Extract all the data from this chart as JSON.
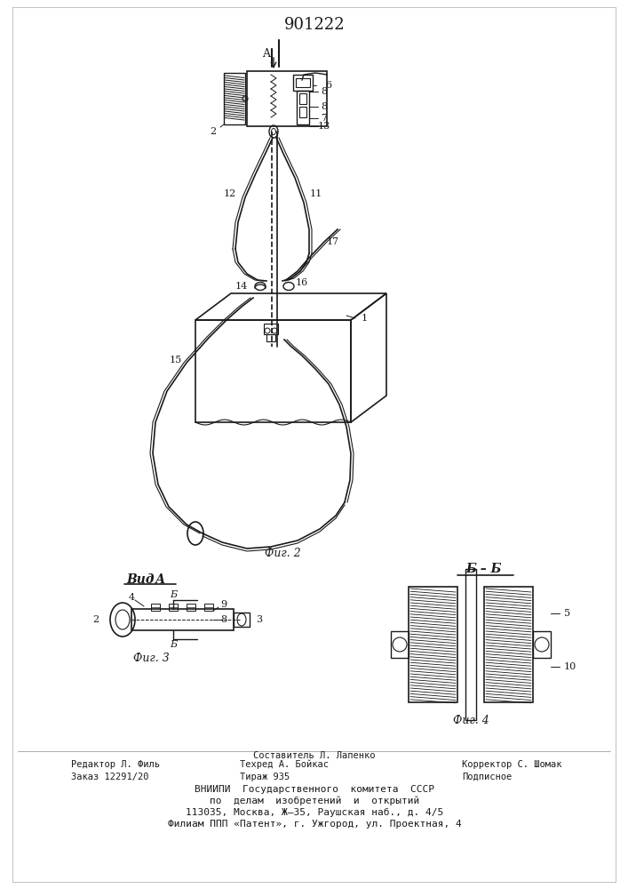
{
  "patent_number": "901222",
  "background_color": "#ffffff",
  "line_color": "#1a1a1a",
  "fig_width": 7.07,
  "fig_height": 10.0,
  "dpi": 100,
  "footer_col1_line1": "Редактор Л. Филь",
  "footer_col1_line2": "Заказ 12291/20",
  "footer_col2_line0": "Составитель Л. Лапенко",
  "footer_col2_line1": "Техред А. Бойкас",
  "footer_col2_line2": "Тираж 935",
  "footer_col3_line1": "Корректор С. Шомак",
  "footer_col3_line2": "Подписное",
  "footer_vnipi1": "ВНИИПИ  Государственного  комитета  СССР",
  "footer_vnipi2": "по  делам  изобретений  и  открытий",
  "footer_vnipi3": "113035, Москва, Ж—35, Раушская наб., д. 4/5",
  "footer_vnipi4": "Филиам ППП «Патент», г. Ужгород, ул. Проектная, 4"
}
